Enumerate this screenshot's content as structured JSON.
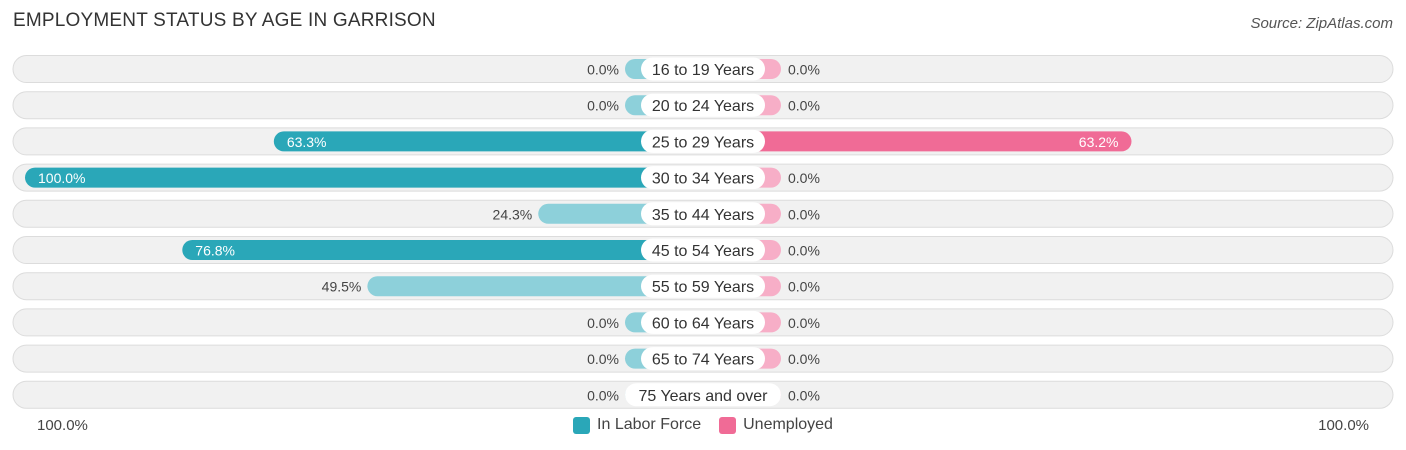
{
  "title": "EMPLOYMENT STATUS BY AGE IN GARRISON",
  "source": "Source: ZipAtlas.com",
  "colors": {
    "labor_force_strong": "#2aa7b8",
    "labor_force_light": "#8dd0da",
    "unemployed_strong": "#f06b96",
    "unemployed_light": "#f7aec7",
    "row_bg": "#f1f1f1",
    "row_border": "#dcdcdc"
  },
  "axis": {
    "left_label": "100.0%",
    "right_label": "100.0%"
  },
  "legend": {
    "labor_force": "In Labor Force",
    "unemployed": "Unemployed"
  },
  "chart_data": {
    "type": "bar",
    "orientation": "horizontal-diverging",
    "categories": [
      "16 to 19 Years",
      "20 to 24 Years",
      "25 to 29 Years",
      "30 to 34 Years",
      "35 to 44 Years",
      "45 to 54 Years",
      "55 to 59 Years",
      "60 to 64 Years",
      "65 to 74 Years",
      "75 Years and over"
    ],
    "series": [
      {
        "name": "In Labor Force",
        "values": [
          0.0,
          0.0,
          63.3,
          100.0,
          24.3,
          76.8,
          49.5,
          0.0,
          0.0,
          0.0
        ],
        "labels": [
          "0.0%",
          "0.0%",
          "63.3%",
          "100.0%",
          "24.3%",
          "76.8%",
          "49.5%",
          "0.0%",
          "0.0%",
          "0.0%"
        ]
      },
      {
        "name": "Unemployed",
        "values": [
          0.0,
          0.0,
          63.2,
          0.0,
          0.0,
          0.0,
          0.0,
          0.0,
          0.0,
          0.0
        ],
        "labels": [
          "0.0%",
          "0.0%",
          "63.2%",
          "0.0%",
          "0.0%",
          "0.0%",
          "0.0%",
          "0.0%",
          "0.0%",
          "0.0%"
        ]
      }
    ],
    "xlim": [
      -100,
      100
    ],
    "legend_position": "bottom-center",
    "grid": false
  }
}
